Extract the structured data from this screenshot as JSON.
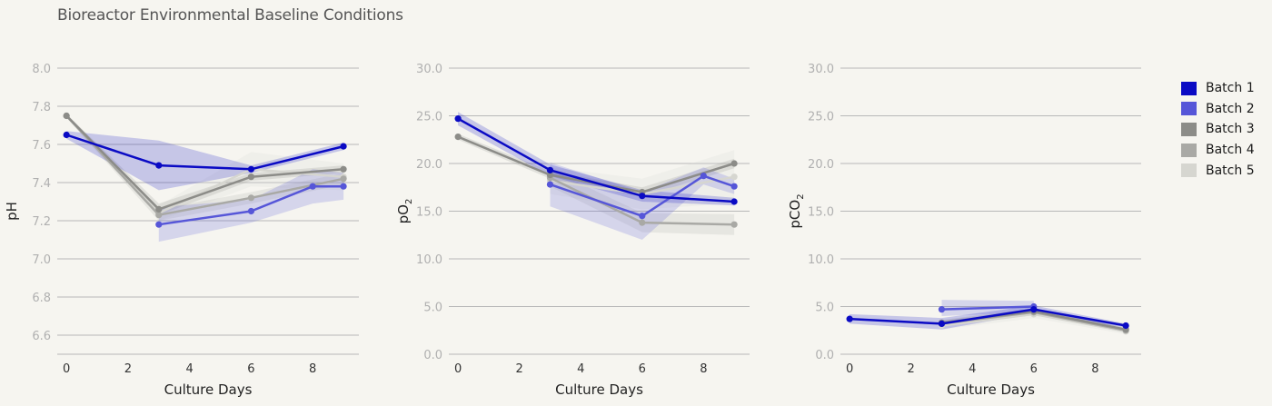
{
  "title": "Bioreactor Environmental Baseline Conditions",
  "colors": {
    "background": "#f6f5f0",
    "grid": "#b8b8b8",
    "tick": "#b0b0b0",
    "axis_label": "#222222"
  },
  "legend": {
    "placement": "right",
    "items": [
      {
        "label": "Batch 1",
        "color": "#0a0ac4"
      },
      {
        "label": "Batch 2",
        "color": "#5656d8"
      },
      {
        "label": "Batch 3",
        "color": "#8c8c88"
      },
      {
        "label": "Batch 4",
        "color": "#a9a9a5"
      },
      {
        "label": "Batch 5",
        "color": "#d6d6d0"
      }
    ]
  },
  "chart_data": [
    {
      "type": "line",
      "xlabel": "Culture Days",
      "ylabel": "pH",
      "ylabel_sub": "",
      "xlim": [
        -0.3,
        9.5
      ],
      "ylim": [
        6.5,
        8.0
      ],
      "xticks": [
        0,
        2,
        4,
        6,
        8
      ],
      "yticks": [
        6.6,
        6.8,
        7.0,
        7.2,
        7.4,
        7.6,
        7.8,
        8.0
      ],
      "ytick_decimals": 1,
      "grid": true,
      "series": [
        {
          "name": "Batch 1",
          "x": [
            0,
            3,
            6,
            9
          ],
          "y": [
            7.65,
            7.49,
            7.47,
            7.59
          ],
          "lower": [
            7.63,
            7.36,
            7.45,
            7.57
          ],
          "upper": [
            7.67,
            7.62,
            7.49,
            7.61
          ]
        },
        {
          "name": "Batch 2",
          "x": [
            3,
            6,
            8,
            9
          ],
          "y": [
            7.18,
            7.25,
            7.38,
            7.38
          ],
          "lower": [
            7.09,
            7.19,
            7.29,
            7.31
          ],
          "upper": [
            7.27,
            7.31,
            7.47,
            7.45
          ]
        },
        {
          "name": "Batch 3",
          "x": [
            0,
            3,
            6,
            9
          ],
          "y": [
            7.75,
            7.26,
            7.43,
            7.47
          ],
          "lower": [
            7.74,
            7.23,
            7.41,
            7.45
          ],
          "upper": [
            7.76,
            7.29,
            7.45,
            7.49
          ]
        },
        {
          "name": "Batch 4",
          "x": [
            0,
            3,
            6,
            9
          ],
          "y": [
            7.75,
            7.23,
            7.32,
            7.42
          ],
          "lower": [
            7.74,
            7.2,
            7.29,
            7.39
          ],
          "upper": [
            7.76,
            7.26,
            7.35,
            7.45
          ]
        },
        {
          "name": "Batch 5",
          "x": [
            3,
            6,
            9
          ],
          "y": [
            7.24,
            7.47,
            7.43
          ],
          "lower": [
            7.2,
            7.38,
            7.36
          ],
          "upper": [
            7.28,
            7.56,
            7.5
          ]
        }
      ]
    },
    {
      "type": "line",
      "xlabel": "Culture Days",
      "ylabel": "pO",
      "ylabel_sub": "2",
      "xlim": [
        -0.3,
        9.5
      ],
      "ylim": [
        0,
        30
      ],
      "xticks": [
        0,
        2,
        4,
        6,
        8
      ],
      "yticks": [
        0,
        5,
        10,
        15,
        20,
        25,
        30
      ],
      "ytick_decimals": 1,
      "grid": true,
      "series": [
        {
          "name": "Batch 1",
          "x": [
            0,
            3,
            6,
            9
          ],
          "y": [
            24.7,
            19.3,
            16.6,
            16.0
          ],
          "lower": [
            24.0,
            18.7,
            16.0,
            15.6
          ],
          "upper": [
            25.4,
            19.9,
            17.2,
            16.4
          ]
        },
        {
          "name": "Batch 2",
          "x": [
            3,
            6,
            8,
            9
          ],
          "y": [
            17.8,
            14.5,
            18.7,
            17.6
          ],
          "lower": [
            15.5,
            12.0,
            17.8,
            16.8
          ],
          "upper": [
            20.1,
            17.0,
            19.6,
            18.4
          ]
        },
        {
          "name": "Batch 3",
          "x": [
            0,
            3,
            6,
            9
          ],
          "y": [
            22.8,
            18.8,
            17.0,
            20.0
          ],
          "lower": [
            22.5,
            18.4,
            16.5,
            19.5
          ],
          "upper": [
            23.1,
            19.2,
            17.5,
            20.5
          ]
        },
        {
          "name": "Batch 4",
          "x": [
            3,
            6,
            9
          ],
          "y": [
            18.5,
            13.8,
            13.6
          ],
          "lower": [
            17.6,
            12.8,
            12.5
          ],
          "upper": [
            19.4,
            14.8,
            14.7
          ]
        },
        {
          "name": "Batch 5",
          "x": [
            3,
            6,
            9
          ],
          "y": [
            18.2,
            16.8,
            18.6
          ],
          "lower": [
            16.8,
            15.2,
            15.8
          ],
          "upper": [
            19.6,
            18.4,
            21.4
          ]
        }
      ]
    },
    {
      "type": "line",
      "xlabel": "Culture Days",
      "ylabel": "pCO",
      "ylabel_sub": "2",
      "xlim": [
        -0.3,
        9.5
      ],
      "ylim": [
        0,
        30
      ],
      "xticks": [
        0,
        2,
        4,
        6,
        8
      ],
      "yticks": [
        0,
        5,
        10,
        15,
        20,
        25,
        30
      ],
      "ytick_decimals": 1,
      "grid": true,
      "series": [
        {
          "name": "Batch 1",
          "x": [
            0,
            3,
            6,
            9
          ],
          "y": [
            3.7,
            3.2,
            4.7,
            3.0
          ],
          "lower": [
            3.2,
            2.6,
            4.3,
            2.8
          ],
          "upper": [
            4.2,
            3.8,
            5.1,
            3.2
          ]
        },
        {
          "name": "Batch 2",
          "x": [
            3,
            6
          ],
          "y": [
            4.7,
            5.0
          ],
          "lower": [
            4.0,
            4.4
          ],
          "upper": [
            5.7,
            5.6
          ]
        },
        {
          "name": "Batch 3",
          "x": [
            3,
            6,
            9
          ],
          "y": [
            3.3,
            4.5,
            2.6
          ],
          "lower": [
            3.0,
            4.2,
            2.4
          ],
          "upper": [
            3.6,
            4.8,
            2.8
          ]
        },
        {
          "name": "Batch 4",
          "x": [
            3,
            6,
            9
          ],
          "y": [
            3.2,
            4.4,
            2.5
          ],
          "lower": [
            2.9,
            4.1,
            2.3
          ],
          "upper": [
            3.5,
            4.7,
            2.7
          ]
        },
        {
          "name": "Batch 5",
          "x": [
            3,
            6,
            9
          ],
          "y": [
            3.0,
            4.2,
            2.4
          ],
          "lower": [
            2.6,
            3.8,
            2.1
          ],
          "upper": [
            3.4,
            4.6,
            2.7
          ]
        }
      ]
    }
  ]
}
